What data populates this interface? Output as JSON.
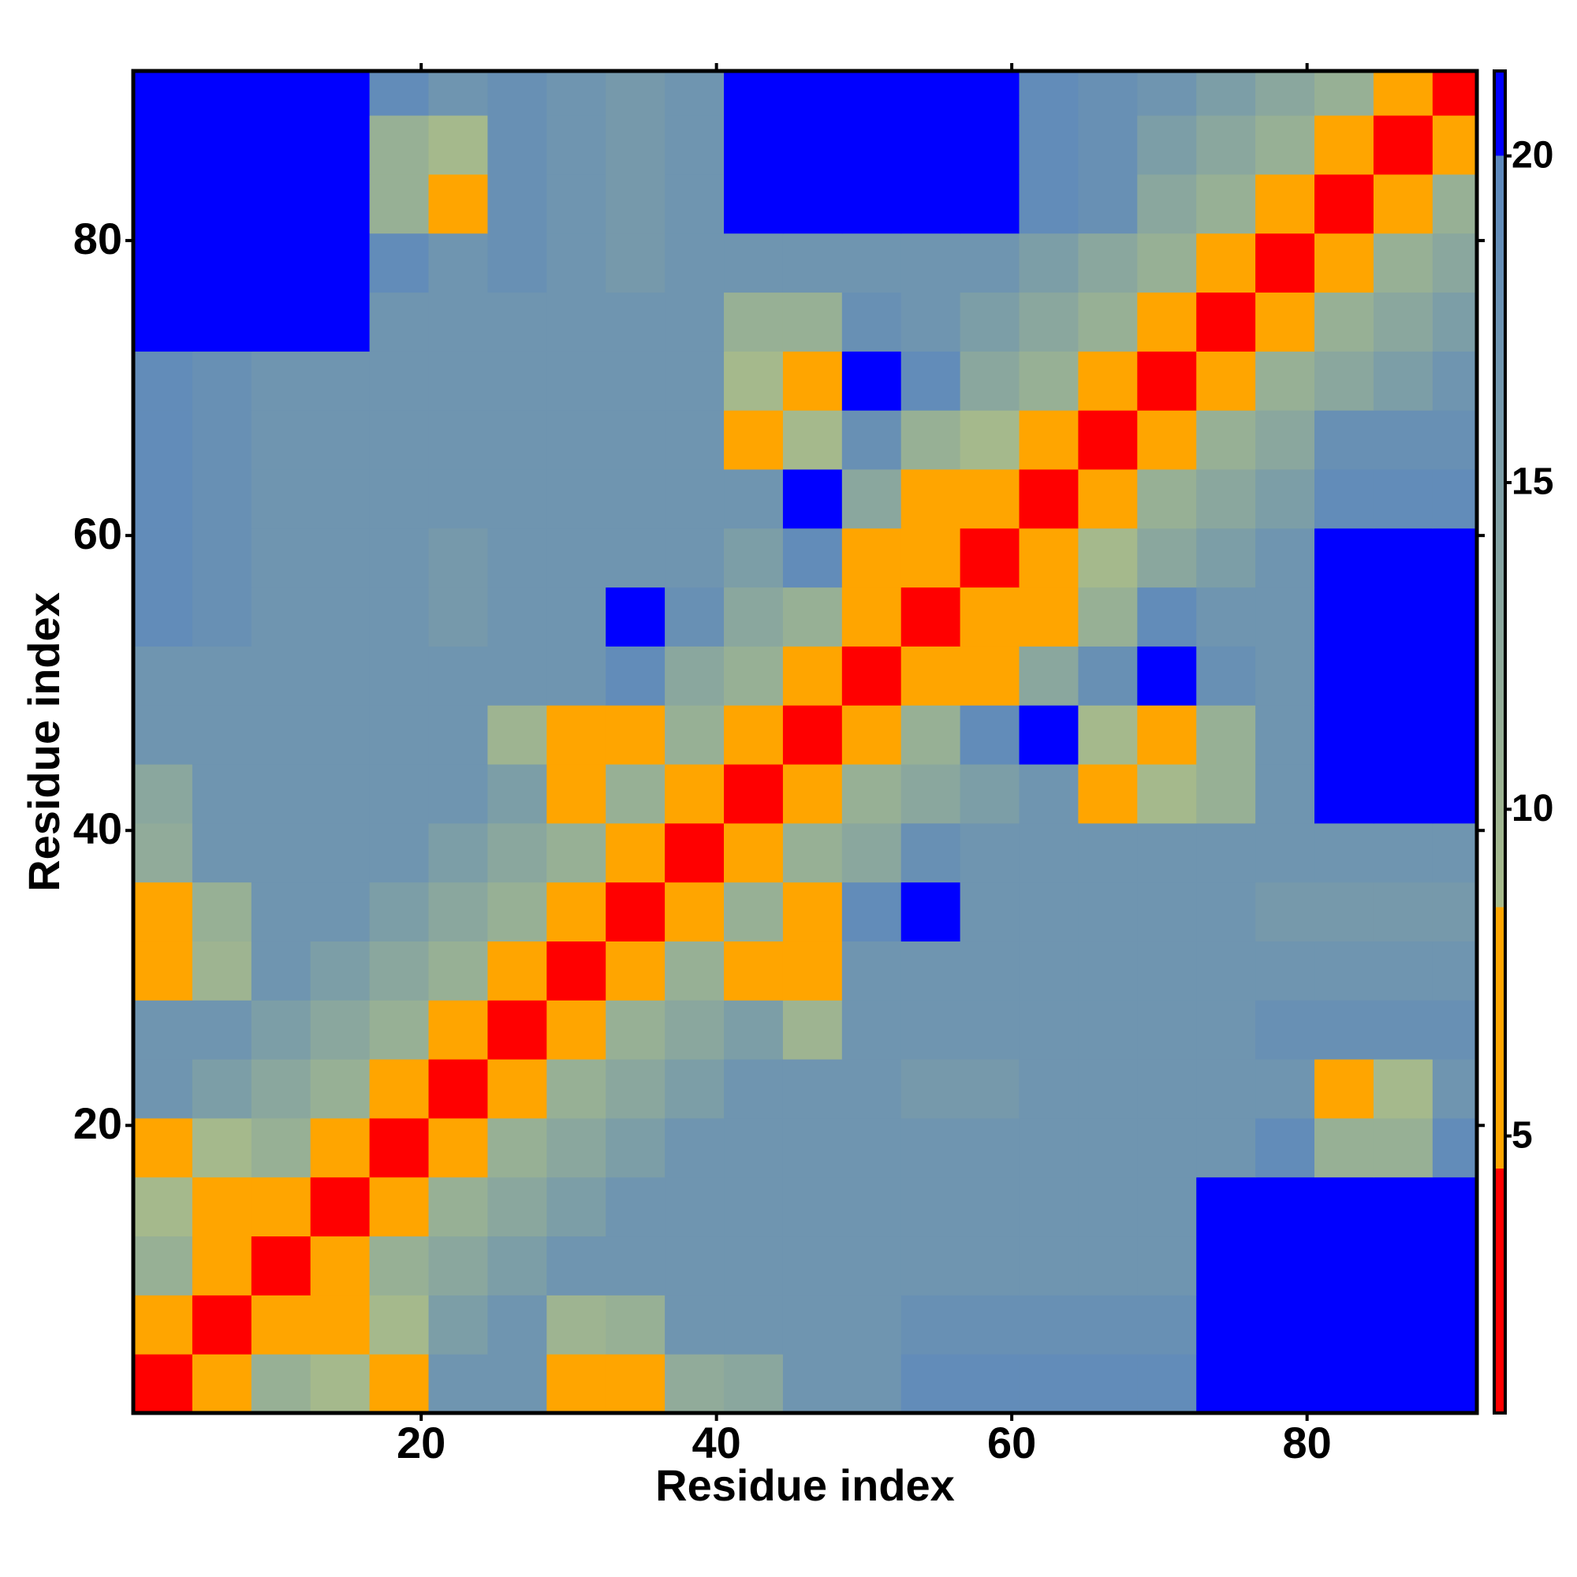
{
  "chart_data": {
    "type": "heatmap",
    "x_label": "Residue index",
    "y_label": "Residue index",
    "xlim": [
      0.5,
      91.5
    ],
    "ylim": [
      0.5,
      91.5
    ],
    "xticks": [
      20,
      40,
      60,
      80
    ],
    "yticks": [
      20,
      40,
      60,
      80
    ],
    "xbins": [
      0.5,
      4.5,
      8.5,
      12.5,
      16.5,
      20.5,
      24.5,
      28.5,
      32.5,
      36.5,
      40.5,
      44.5,
      48.5,
      52.5,
      56.5,
      60.5,
      64.5,
      68.5,
      72.5,
      76.5,
      80.5,
      84.5,
      88.5,
      91.5
    ],
    "ybins": [
      0.5,
      4.5,
      8.5,
      12.5,
      16.5,
      20.5,
      24.5,
      28.5,
      32.5,
      36.5,
      40.5,
      44.5,
      48.5,
      52.5,
      56.5,
      60.5,
      64.5,
      68.5,
      72.5,
      76.5,
      80.5,
      84.5,
      88.5,
      91.5
    ],
    "zlim": [
      0.76,
      21.3
    ],
    "zticks": [
      5,
      10,
      15,
      20
    ],
    "colorscale": [
      [
        0.76,
        "#ff0000"
      ],
      [
        4.5,
        "#ff0000"
      ],
      [
        4.5,
        "#ffa500"
      ],
      [
        8.5,
        "#ffa500"
      ],
      [
        8.5,
        "#a8bb8a"
      ],
      [
        20,
        "#5b87bd"
      ],
      [
        20,
        "#0000ff"
      ],
      [
        21.3,
        "#0000ff"
      ]
    ],
    "z": [
      [
        3,
        7,
        11,
        9,
        6,
        17,
        17,
        8,
        8,
        12,
        13,
        17,
        17,
        19,
        19,
        19,
        19,
        19,
        21,
        21,
        21,
        21,
        21
      ],
      [
        7,
        3,
        7,
        6,
        9,
        15,
        17,
        10,
        11,
        17,
        17,
        17,
        17,
        18,
        18,
        18,
        18,
        18,
        21,
        21,
        21,
        21,
        21
      ],
      [
        11,
        7,
        3,
        7,
        11,
        13,
        15,
        17,
        17,
        17,
        17,
        17,
        17,
        17,
        17,
        17,
        17,
        17,
        21,
        21,
        21,
        21,
        21
      ],
      [
        9,
        6,
        7,
        3,
        7,
        11,
        13,
        15,
        17,
        17,
        17,
        17,
        17,
        17,
        17,
        17,
        17,
        17,
        21,
        21,
        21,
        21,
        21
      ],
      [
        6,
        9,
        11,
        7,
        3,
        7,
        11,
        13,
        15,
        17,
        17,
        17,
        17,
        17,
        17,
        17,
        17,
        17,
        17,
        19,
        11,
        11,
        19
      ],
      [
        17,
        15,
        13,
        11,
        7,
        3,
        7,
        11,
        13,
        15,
        17,
        17,
        17,
        16,
        16,
        17,
        17,
        17,
        17,
        17,
        8,
        9,
        17
      ],
      [
        17,
        17,
        15,
        13,
        11,
        7,
        3,
        7,
        11,
        13,
        15,
        10,
        17,
        17,
        17,
        17,
        17,
        17,
        17,
        18,
        18,
        18,
        18
      ],
      [
        8,
        10,
        17,
        15,
        13,
        11,
        7,
        3,
        7,
        11,
        7,
        8,
        17,
        17,
        17,
        17,
        17,
        17,
        17,
        17,
        17,
        17,
        17
      ],
      [
        8,
        11,
        17,
        17,
        15,
        13,
        11,
        7,
        3,
        7,
        11,
        8,
        19,
        20,
        17,
        17,
        17,
        17,
        17,
        16,
        16,
        16,
        16
      ],
      [
        12,
        17,
        17,
        17,
        17,
        15,
        13,
        11,
        7,
        3,
        7,
        11,
        13,
        18,
        17,
        17,
        17,
        17,
        17,
        17,
        17,
        17,
        17
      ],
      [
        13,
        17,
        17,
        17,
        17,
        17,
        15,
        7,
        11,
        7,
        3,
        7,
        11,
        13,
        15,
        17,
        8,
        9,
        11,
        17,
        20,
        20,
        20
      ],
      [
        17,
        17,
        17,
        17,
        17,
        17,
        10,
        8,
        8,
        11,
        7,
        3,
        7,
        11,
        19,
        20,
        9,
        8,
        11,
        17,
        20,
        20,
        20
      ],
      [
        17,
        17,
        17,
        17,
        17,
        17,
        17,
        17,
        19,
        13,
        11,
        7,
        3,
        7,
        8,
        13,
        18,
        20,
        18,
        17,
        21,
        21,
        21
      ],
      [
        19,
        18,
        17,
        17,
        17,
        16,
        17,
        17,
        20,
        18,
        13,
        11,
        7,
        3,
        7,
        8,
        11,
        19,
        17,
        17,
        21,
        21,
        21
      ],
      [
        19,
        18,
        17,
        17,
        17,
        16,
        17,
        17,
        17,
        17,
        15,
        19,
        8,
        7,
        3,
        7,
        9,
        13,
        15,
        17,
        20,
        20,
        20
      ],
      [
        19,
        18,
        17,
        17,
        17,
        17,
        17,
        17,
        17,
        17,
        17,
        20,
        13,
        8,
        7,
        3,
        7,
        11,
        13,
        15,
        19,
        19,
        19
      ],
      [
        19,
        18,
        17,
        17,
        17,
        17,
        17,
        17,
        17,
        17,
        8,
        9,
        18,
        11,
        9,
        7,
        3,
        7,
        11,
        13,
        18,
        18,
        18
      ],
      [
        19,
        18,
        17,
        17,
        17,
        17,
        17,
        17,
        17,
        17,
        9,
        8,
        20,
        19,
        13,
        11,
        7,
        3,
        7,
        11,
        13,
        15,
        17
      ],
      [
        21,
        21,
        21,
        21,
        17,
        17,
        17,
        17,
        17,
        17,
        11,
        11,
        18,
        17,
        15,
        13,
        11,
        7,
        3,
        7,
        11,
        13,
        15
      ],
      [
        21,
        21,
        21,
        21,
        19,
        17,
        18,
        17,
        16,
        17,
        17,
        17,
        17,
        17,
        17,
        15,
        13,
        11,
        7,
        3,
        7,
        11,
        13
      ],
      [
        21,
        21,
        21,
        21,
        11,
        8,
        18,
        17,
        16,
        17,
        20,
        20,
        21,
        21,
        20,
        19,
        18,
        13,
        11,
        7,
        3,
        7,
        11
      ],
      [
        21,
        21,
        21,
        21,
        11,
        9,
        18,
        17,
        16,
        17,
        20,
        20,
        21,
        21,
        20,
        19,
        18,
        15,
        13,
        11,
        7,
        3,
        7
      ],
      [
        21,
        21,
        21,
        21,
        19,
        17,
        18,
        17,
        16,
        17,
        20,
        20,
        21,
        21,
        20,
        19,
        18,
        17,
        15,
        13,
        11,
        7,
        3
      ]
    ]
  }
}
